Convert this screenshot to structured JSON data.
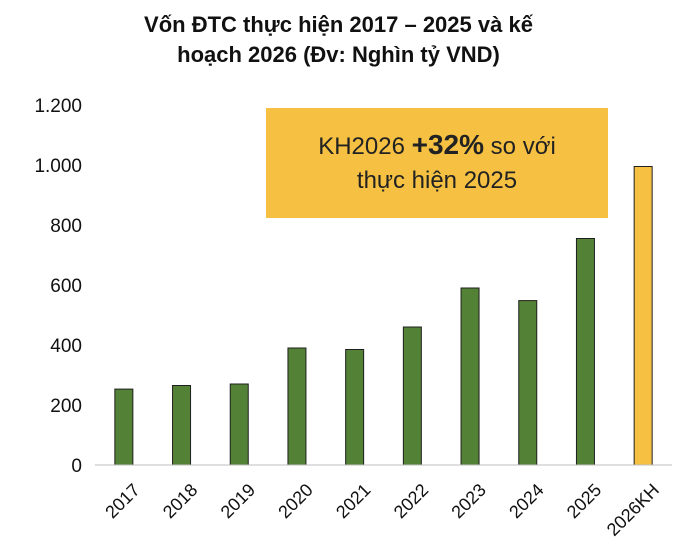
{
  "title_line1": "Vốn ĐTC thực hiện 2017 – 2025 và kế",
  "title_line2": "hoạch 2026 (Đv: Nghìn tỷ VND)",
  "callout": {
    "prefix": "KH2026 ",
    "highlight": "+32%",
    "suffix": " so với",
    "line2": "thực hiện 2025",
    "background": "#F6C142"
  },
  "colors": {
    "actual": "#538135",
    "plan": "#F6C142",
    "edge": "#1f1f1f"
  },
  "chart_data": {
    "type": "bar",
    "categories": [
      "2017",
      "2018",
      "2019",
      "2020",
      "2021",
      "2022",
      "2023",
      "2024",
      "2025",
      "2026KH"
    ],
    "values": [
      253,
      265,
      270,
      390,
      385,
      460,
      590,
      548,
      755,
      995
    ],
    "ylim": [
      0,
      1200
    ],
    "yticks": [
      0,
      200,
      400,
      600,
      800,
      1000,
      1200
    ],
    "ytick_labels": [
      "0",
      "200",
      "400",
      "600",
      "800",
      "1.000",
      "1.200"
    ],
    "grid": false,
    "legend": "none"
  }
}
